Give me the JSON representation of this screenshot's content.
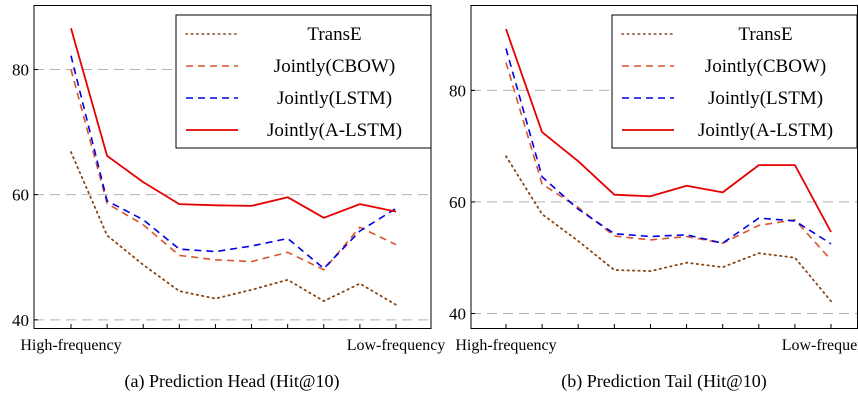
{
  "chart_data": [
    {
      "type": "line",
      "caption": "(a) Prediction Head (Hit@10)",
      "x_tick_labels": [
        "High-frequency",
        "Low-frequency"
      ],
      "y_ticks": [
        40,
        60,
        80
      ],
      "ylim": [
        38.7,
        90.3
      ],
      "x": [
        1,
        2,
        3,
        4,
        5,
        6,
        7,
        8,
        9,
        10
      ],
      "grid": "horizontal dashed",
      "legend_position": "top-right",
      "series": [
        {
          "name": "TransE",
          "style": "dotted",
          "color": "#8b4513",
          "values": [
            66.8,
            53.5,
            48.8,
            44.6,
            43.4,
            44.8,
            46.4,
            43.0,
            45.8,
            42.4
          ]
        },
        {
          "name": "Jointly(CBOW)",
          "style": "dashed",
          "color": "#d9532b",
          "values": [
            80.0,
            58.6,
            55.2,
            50.3,
            49.6,
            49.3,
            50.8,
            48.0,
            54.8,
            52.0
          ]
        },
        {
          "name": "Jointly(LSTM)",
          "style": "dashed",
          "color": "#0000e6",
          "values": [
            82.2,
            59.0,
            56.0,
            51.3,
            50.9,
            51.8,
            53.0,
            48.2,
            54.2,
            57.8
          ]
        },
        {
          "name": "Jointly(A-LSTM)",
          "style": "solid",
          "color": "#e60000",
          "values": [
            86.6,
            66.2,
            62.0,
            58.5,
            58.3,
            58.2,
            59.6,
            56.3,
            58.5,
            57.3
          ]
        }
      ]
    },
    {
      "type": "line",
      "caption": "(b) Prediction Tail (Hit@10)",
      "x_tick_labels": [
        "High-frequency",
        "Low-frequency"
      ],
      "y_ticks": [
        40,
        60,
        80
      ],
      "ylim": [
        37.4,
        95.3
      ],
      "x": [
        1,
        2,
        3,
        4,
        5,
        6,
        7,
        8,
        9,
        10
      ],
      "grid": "horizontal dashed",
      "legend_position": "top-right",
      "series": [
        {
          "name": "TransE",
          "style": "dotted",
          "color": "#8b4513",
          "values": [
            68.2,
            57.8,
            53.0,
            47.8,
            47.6,
            49.1,
            48.3,
            50.8,
            50.0,
            42.2
          ]
        },
        {
          "name": "Jointly(CBOW)",
          "style": "dashed",
          "color": "#d9532b",
          "values": [
            85.0,
            63.2,
            59.0,
            53.9,
            53.2,
            53.8,
            52.6,
            55.8,
            56.8,
            49.6
          ]
        },
        {
          "name": "Jointly(LSTM)",
          "style": "dashed",
          "color": "#0000e6",
          "values": [
            87.5,
            64.5,
            58.7,
            54.3,
            53.8,
            54.1,
            52.6,
            57.1,
            56.6,
            52.5
          ]
        },
        {
          "name": "Jointly(A-LSTM)",
          "style": "solid",
          "color": "#e60000",
          "values": [
            91.0,
            72.5,
            67.3,
            61.3,
            61.0,
            62.9,
            61.7,
            66.6,
            66.6,
            54.6
          ]
        }
      ]
    }
  ]
}
